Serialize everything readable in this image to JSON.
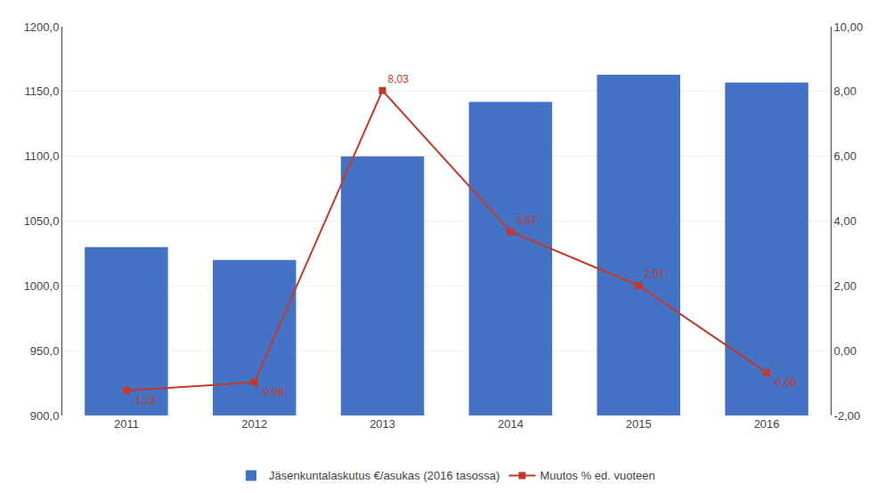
{
  "chart_data": {
    "type": "bar",
    "categories": [
      "2011",
      "2012",
      "2013",
      "2014",
      "2015",
      "2016"
    ],
    "series": [
      {
        "name": "Jäsenkuntalaskutus €/asukas (2016 tasossa)",
        "type": "bar",
        "color": "#4472C4",
        "values": [
          1030,
          1020,
          1100,
          1142,
          1163,
          1157
        ]
      },
      {
        "name": "Muutos % ed. vuoteen",
        "type": "line",
        "axis": "y2",
        "color": "#C0392B",
        "marker": "square",
        "values": [
          -1.23,
          -0.98,
          8.03,
          3.67,
          2.01,
          -0.68
        ],
        "value_labels": [
          "-1,23",
          "-0,98",
          "8,03",
          "3,67",
          "2,01",
          "-0,68"
        ]
      }
    ],
    "ylim": [
      900,
      1200
    ],
    "yticks": [
      {
        "value": 900,
        "label": "900,0"
      },
      {
        "value": 950,
        "label": "950,0"
      },
      {
        "value": 1000,
        "label": "1000,0"
      },
      {
        "value": 1050,
        "label": "1050,0"
      },
      {
        "value": 1100,
        "label": "1100,0"
      },
      {
        "value": 1150,
        "label": "1150,0"
      },
      {
        "value": 1200,
        "label": "1200,0"
      }
    ],
    "y2lim": [
      -2,
      10
    ],
    "y2ticks": [
      {
        "value": -2,
        "label": "-2,00"
      },
      {
        "value": 0,
        "label": "0,00"
      },
      {
        "value": 2,
        "label": "2,00"
      },
      {
        "value": 4,
        "label": "4,00"
      },
      {
        "value": 6,
        "label": "6,00"
      },
      {
        "value": 8,
        "label": "8,00"
      },
      {
        "value": 10,
        "label": "10,00"
      }
    ],
    "grid": true,
    "legend": "bottom"
  }
}
